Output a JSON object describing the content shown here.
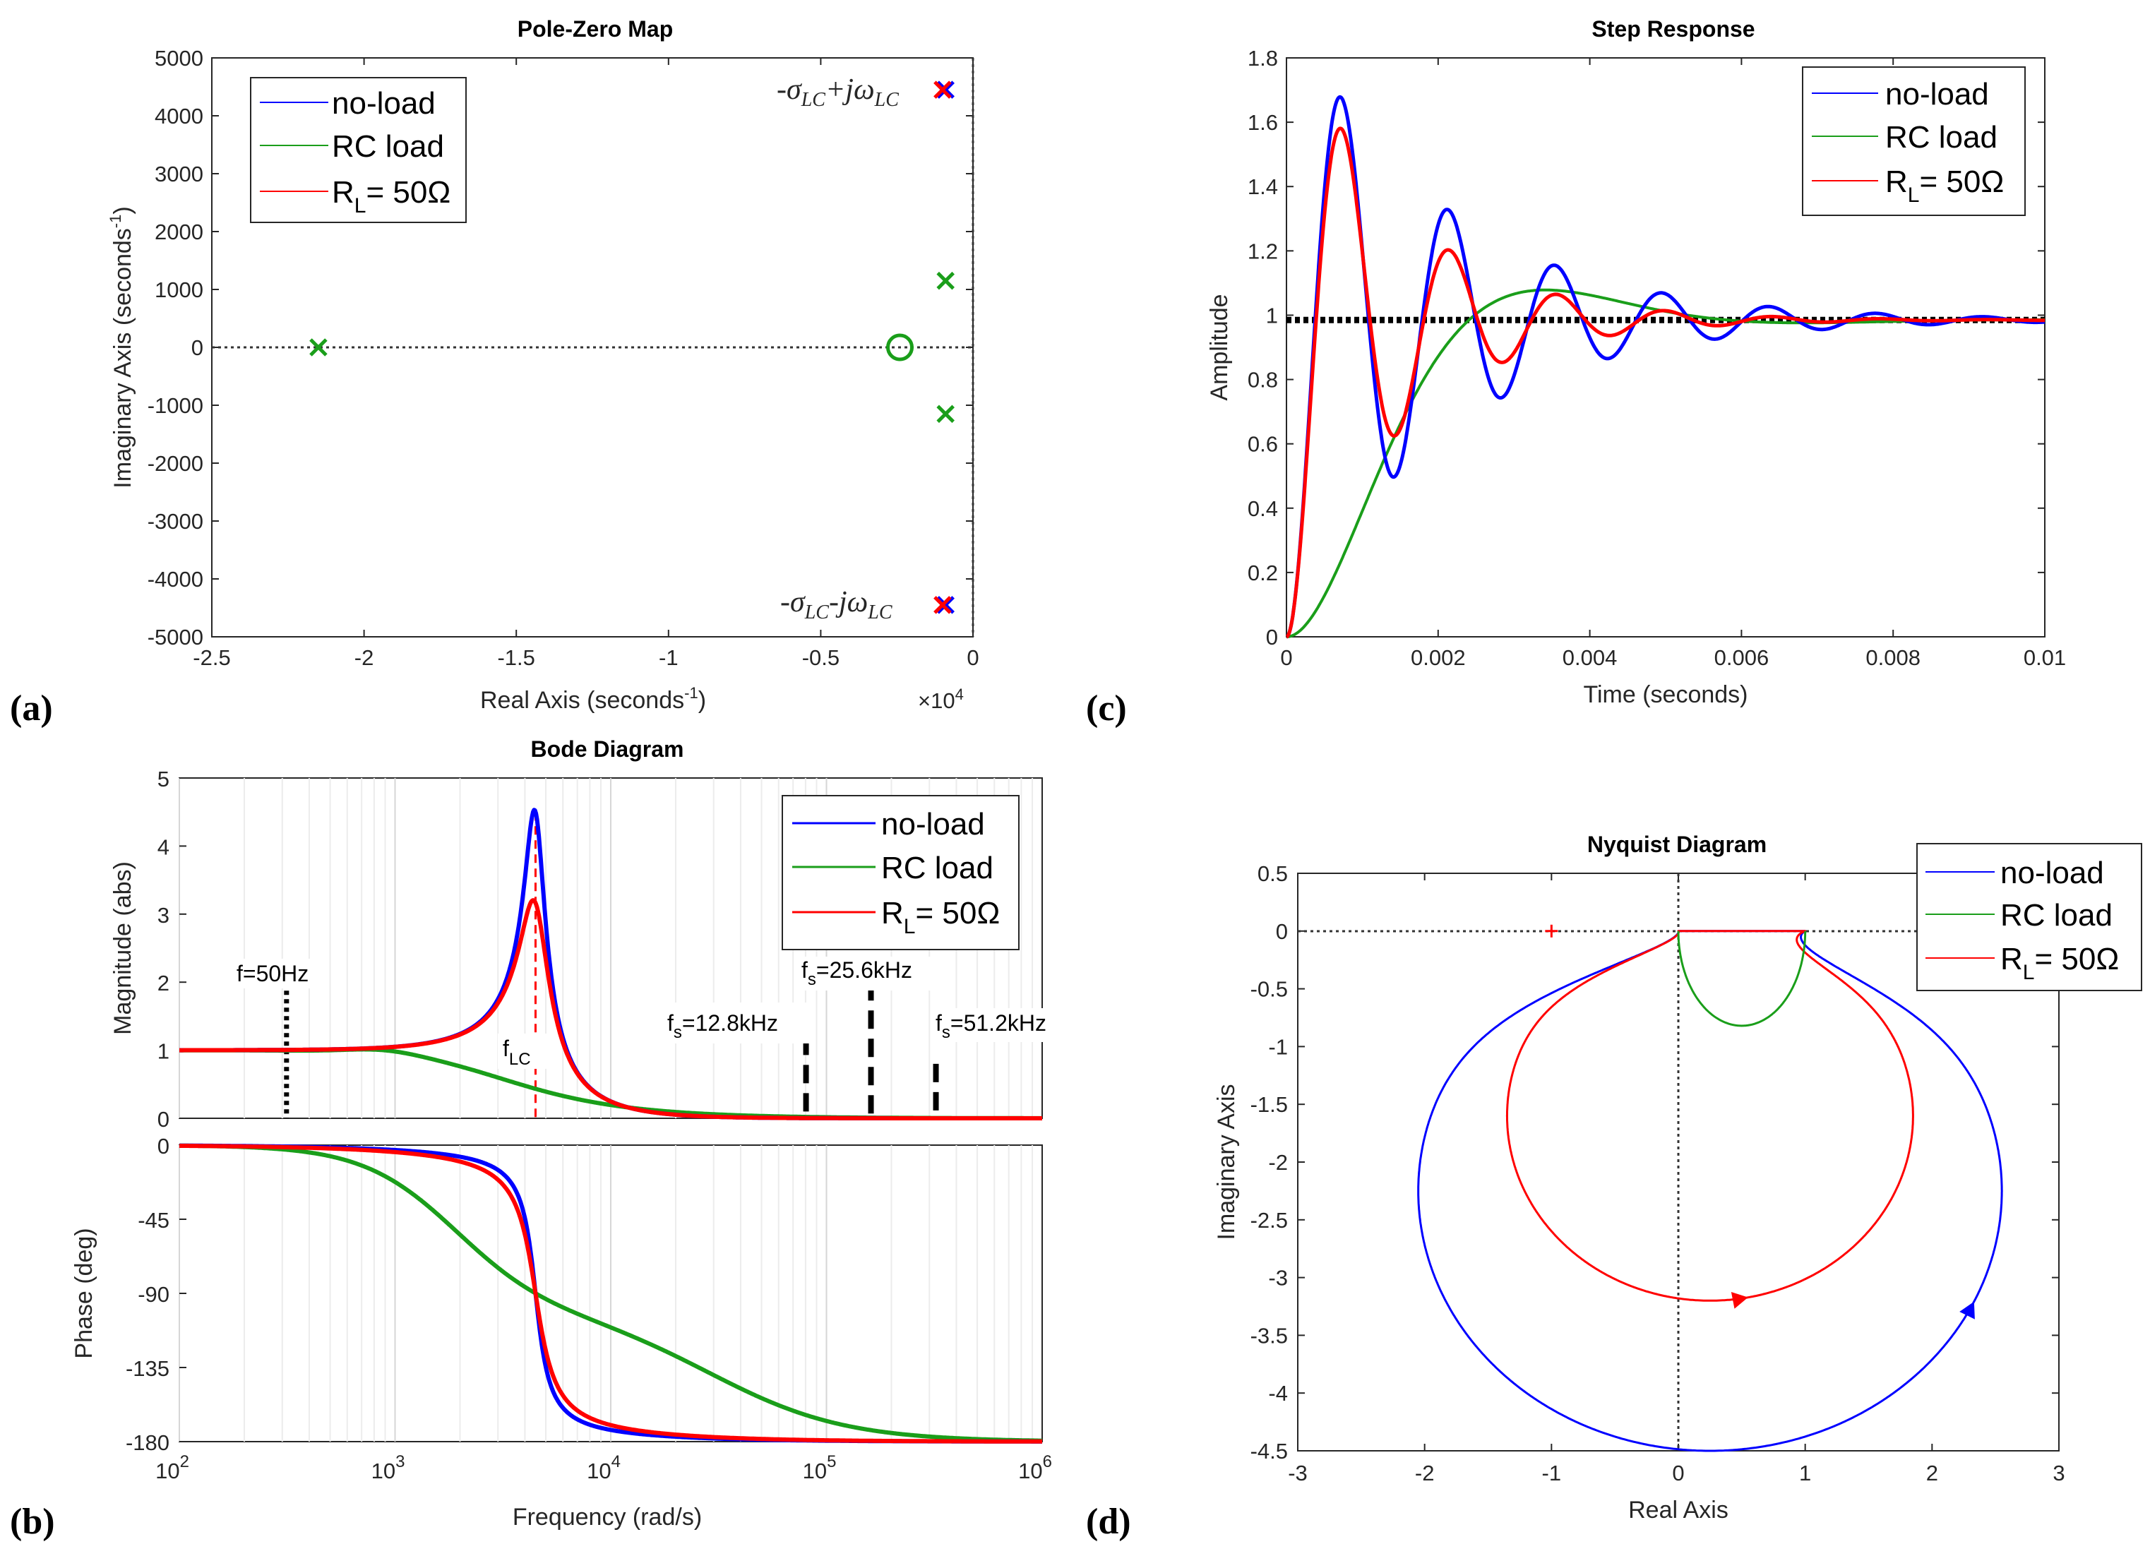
{
  "colors": {
    "noload": "#0000ff",
    "rc": "#1a9e1a",
    "rl": "#ff0000",
    "axis": "#262626",
    "grid": "#e3e3e3"
  },
  "panels": {
    "a": "(a)",
    "b": "(b)",
    "c": "(c)",
    "d": "(d)"
  },
  "legend": {
    "noload": "no-load",
    "rc": "RC load",
    "rl_r": "R",
    "rl_sub": "L",
    "rl_val": "= 50Ω"
  },
  "chart_data": [
    {
      "id": "a",
      "type": "scatter",
      "title": "Pole-Zero Map",
      "xlabel_main": "Real Axis (seconds",
      "xlabel_sup": "-1",
      "xlabel_end": ")",
      "ylabel_main": "Imaginary Axis (seconds",
      "ylabel_sup": "-1",
      "ylabel_end": ")",
      "x_multiplier": "×10",
      "x_multiplier_exp": "4",
      "xlim": [
        -2.5,
        0
      ],
      "ylim": [
        -5000,
        5000
      ],
      "xticks": [
        -2.5,
        -2,
        -1.5,
        -1,
        -0.5,
        0
      ],
      "xticklabels": [
        "-2.5",
        "-2",
        "-1.5",
        "-1",
        "-0.5",
        "0"
      ],
      "yticks": [
        5000,
        4000,
        3000,
        2000,
        1000,
        0,
        -1000,
        -2000,
        -3000,
        -4000,
        -5000
      ],
      "yticklabels": [
        "5000",
        "4000",
        "3000",
        "2000",
        "1000",
        "0",
        "-1000",
        "-2000",
        "-3000",
        "-4000",
        "-5000"
      ],
      "poles": [
        {
          "series": "noload",
          "x": -0.09,
          "y": 4450
        },
        {
          "series": "noload",
          "x": -0.09,
          "y": -4450
        },
        {
          "series": "rl",
          "x": -0.1,
          "y": 4450
        },
        {
          "series": "rl",
          "x": -0.1,
          "y": -4450
        },
        {
          "series": "rc",
          "x": -2.15,
          "y": 0
        },
        {
          "series": "rc",
          "x": -0.09,
          "y": 1150
        },
        {
          "series": "rc",
          "x": -0.09,
          "y": -1150
        }
      ],
      "zeros": [
        {
          "series": "rc",
          "x": -0.24,
          "y": 0
        }
      ],
      "annotations": [
        {
          "pre": "-σ",
          "sub1": "LC",
          "mid": "+jω",
          "sub2": "LC"
        },
        {
          "pre": "-σ",
          "sub1": "LC",
          "mid": "-jω",
          "sub2": "LC"
        }
      ]
    },
    {
      "id": "b",
      "type": "line",
      "title": "Bode Diagram",
      "xlabel": "Frequency  (rad/s)",
      "xscale": "log",
      "xlim": [
        100,
        1000000
      ],
      "xticks": [
        100,
        1000,
        10000,
        100000,
        1000000
      ],
      "xticklabels": [
        "10",
        "10",
        "10",
        "10",
        "10"
      ],
      "xticksups": [
        "2",
        "3",
        "4",
        "5",
        "6"
      ],
      "magnitude": {
        "ylabel": "Magnitude (abs)",
        "ylim": [
          0,
          5
        ],
        "yticks": [
          0,
          1,
          2,
          3,
          4,
          5
        ],
        "yticklabels": [
          "0",
          "1",
          "2",
          "3",
          "4",
          "5"
        ],
        "parameters": {
          "noload": {
            "w0": 4480,
            "zeta": 0.111
          },
          "rl": {
            "w0": 4480,
            "zeta": 0.158
          },
          "rc": {
            "w1": 1150,
            "w2": 2150,
            "zeta1": 0.2,
            "zeta2": 1.0
          }
        },
        "peaks": {
          "noload": 4.5,
          "rl": 3.2
        },
        "markers": [
          {
            "x": 314,
            "height": 2,
            "style": "dotted",
            "label": "f=50Hz"
          },
          {
            "x": 80400,
            "height": 1.2,
            "style": "dashed",
            "label_pre": "f",
            "label_sub": "s",
            "label_post": "=12.8kHz"
          },
          {
            "x": 160800,
            "height": 2,
            "style": "dashed",
            "label_pre": "f",
            "label_sub": "s",
            "label_post": "=25.6kHz"
          },
          {
            "x": 321700,
            "height": 0.8,
            "style": "dashed",
            "label_pre": "f",
            "label_sub": "s",
            "label_post": "=51.2kHz"
          },
          {
            "x": 4480,
            "height": 4.5,
            "style": "red-dashed",
            "label_pre": "f",
            "label_sub": "LC",
            "label_post": ""
          }
        ]
      },
      "phase": {
        "ylabel": "Phase (deg)",
        "ylim": [
          -180,
          0
        ],
        "yticks": [
          0,
          -45,
          -90,
          -135,
          -180
        ],
        "yticklabels": [
          "0",
          "-45",
          "-90",
          "-135",
          "-180"
        ]
      }
    },
    {
      "id": "c",
      "type": "line",
      "title": "Step Response",
      "xlabel": "Time (seconds)",
      "ylabel": "Amplitude",
      "xlim": [
        0,
        0.01
      ],
      "ylim": [
        0,
        1.8
      ],
      "xticks": [
        0,
        0.002,
        0.004,
        0.006,
        0.008,
        0.01
      ],
      "xticklabels": [
        "0",
        "0.002",
        "0.004",
        "0.006",
        "0.008",
        "0.01"
      ],
      "yticks": [
        0,
        0.2,
        0.4,
        0.6,
        0.8,
        1,
        1.2,
        1.4,
        1.6,
        1.8
      ],
      "yticklabels": [
        "0",
        "0.2",
        "0.4",
        "0.6",
        "0.8",
        "1",
        "1.2",
        "1.4",
        "1.6",
        "1.8"
      ],
      "steady_state": 0.985,
      "series": [
        {
          "name": "no-load",
          "key": "noload",
          "first_peak": 1.7,
          "first_peak_t": 0.0007,
          "first_trough": 0.51,
          "period": 0.0014
        },
        {
          "name": "RC load",
          "key": "rc",
          "peak": 1.09,
          "peak_t": 0.0021
        },
        {
          "name": "R_L = 50Ω",
          "key": "rl",
          "first_peak": 1.58,
          "first_peak_t": 0.0007,
          "first_trough": 0.62,
          "period": 0.0014
        }
      ]
    },
    {
      "id": "d",
      "type": "line",
      "title": "Nyquist Diagram",
      "xlabel": "Real Axis",
      "ylabel": "Imaginary Axis",
      "xlim": [
        -3,
        3
      ],
      "ylim": [
        -4.5,
        0.5
      ],
      "xticks": [
        -3,
        -2,
        -1,
        0,
        1,
        2,
        3
      ],
      "xticklabels": [
        "-3",
        "-2",
        "-1",
        "0",
        "1",
        "2",
        "3"
      ],
      "yticks": [
        0.5,
        0,
        -0.5,
        -1,
        -1.5,
        -2,
        -2.5,
        -3,
        -3.5,
        -4,
        -4.5
      ],
      "yticklabels": [
        "0.5",
        "0",
        "-0.5",
        "-1",
        "-1.5",
        "-2",
        "-2.5",
        "-3",
        "-3.5",
        "-4",
        "-4.5"
      ],
      "critical_point": [
        -1,
        0
      ],
      "series": [
        {
          "name": "no-load",
          "key": "noload",
          "min_imag": -4.5,
          "real_range": [
            -2.05,
            2.55
          ]
        },
        {
          "name": "RC load",
          "key": "rc",
          "min_imag": -0.82,
          "real_range": [
            -0.05,
            1.0
          ]
        },
        {
          "name": "R_L = 50Ω",
          "key": "rl",
          "min_imag": -3.2,
          "real_range": [
            -1.35,
            1.85
          ]
        }
      ]
    }
  ]
}
